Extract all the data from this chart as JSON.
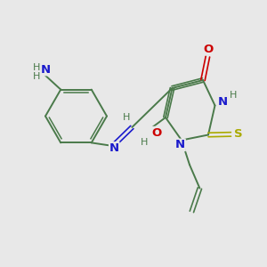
{
  "bg_color": "#e8e8e8",
  "bond_color": "#4a7a4a",
  "n_color": "#1a1acc",
  "o_color": "#cc0000",
  "s_color": "#aaaa00",
  "h_color": "#4a7a4a",
  "figsize": [
    3.0,
    3.0
  ],
  "dpi": 100,
  "xlim": [
    0,
    10
  ],
  "ylim": [
    0,
    10
  ]
}
